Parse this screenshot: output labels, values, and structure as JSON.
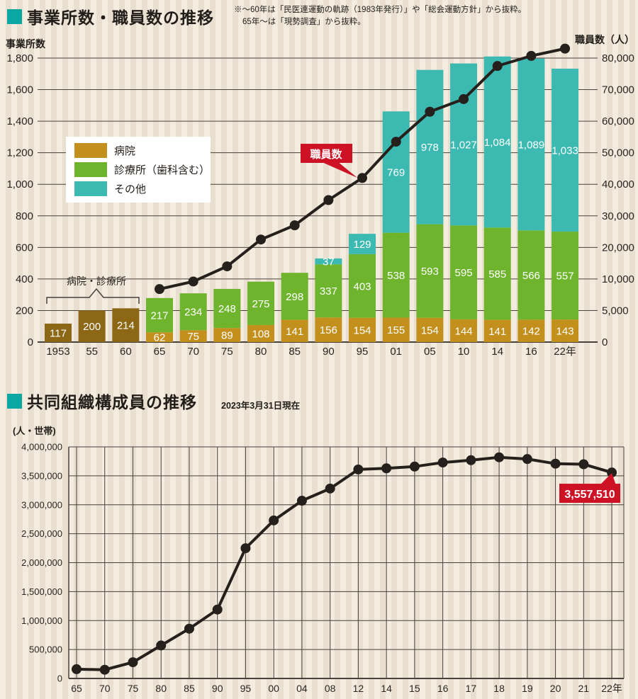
{
  "colors": {
    "square": "#0ba7a3",
    "hospital": "#c3901d",
    "clinic": "#6eb52d",
    "other": "#3cbab2",
    "combined": "#8c6716",
    "line": "#26201c",
    "red": "#cd1226",
    "grid": "#47413c",
    "text": "#2a2521",
    "white": "#ffffff"
  },
  "header1": {
    "title": "事業所数・職員数の推移",
    "note1": "※～60年は「民医連運動の軌跡（1983年発行）」や「総会運動方針」から抜粋。",
    "note2": "65年～は「現勢調査」から抜粋。"
  },
  "header2": {
    "title": "共同組織構成員の推移",
    "subtitle": "2023年3月31日現在"
  },
  "chart_data": [
    {
      "type": "bar+line",
      "title": "事業所数・職員数の推移",
      "categories": [
        "1953",
        "55",
        "60",
        "65",
        "70",
        "75",
        "80",
        "85",
        "90",
        "95",
        "01",
        "05",
        "10",
        "14",
        "16",
        "22年"
      ],
      "left_axis": {
        "label": "事業所数",
        "max": 1800,
        "ticks": [
          "0",
          "200",
          "400",
          "600",
          "800",
          "1,000",
          "1,200",
          "1,400",
          "1,600",
          "1,800"
        ]
      },
      "right_axis": {
        "label": "職員数（人）",
        "tick_values": [
          0,
          5000,
          10000,
          20000,
          30000,
          40000,
          50000,
          60000,
          70000,
          80000
        ],
        "ticks": [
          "0",
          "5,000",
          "10,000",
          "20,000",
          "30,000",
          "40,000",
          "50,000",
          "60,000",
          "70,000",
          "80,000"
        ]
      },
      "bar_series": [
        {
          "name": "病院・診療所",
          "color": "combined",
          "values": [
            117,
            200,
            214,
            0,
            0,
            0,
            0,
            0,
            0,
            0,
            0,
            0,
            0,
            0,
            0,
            0
          ]
        },
        {
          "name": "病院",
          "color": "hospital",
          "values": [
            0,
            0,
            0,
            62,
            75,
            89,
            108,
            141,
            156,
            154,
            155,
            154,
            144,
            141,
            142,
            143
          ]
        },
        {
          "name": "診療所（歯科含む）",
          "color": "clinic",
          "values": [
            0,
            0,
            0,
            217,
            234,
            248,
            275,
            298,
            337,
            403,
            538,
            593,
            595,
            585,
            566,
            557
          ]
        },
        {
          "name": "その他",
          "color": "other",
          "values": [
            0,
            0,
            0,
            0,
            0,
            0,
            0,
            0,
            37,
            129,
            769,
            978,
            1027,
            1084,
            1089,
            1033
          ]
        }
      ],
      "line_series": {
        "name": "職員数",
        "start_index": 3,
        "values": [
          8400,
          9600,
          14000,
          22500,
          27000,
          35000,
          42000,
          53500,
          63000,
          67000,
          77500,
          80700,
          83000
        ],
        "note": "values estimated from plot position"
      },
      "legend": [
        {
          "label": "病院",
          "color": "hospital"
        },
        {
          "label": "診療所（歯科含む）",
          "color": "clinic"
        },
        {
          "label": "その他",
          "color": "other"
        }
      ],
      "annotations": {
        "bracket_label": "病院・診療所",
        "line_callout": "職員数"
      },
      "legend_position": "upper-left",
      "grid": true
    },
    {
      "type": "line",
      "title": "共同組織構成員の推移",
      "subtitle": "2023年3月31日現在",
      "ylabel": "(人・世帯)",
      "ymax": 4000000,
      "yticks": [
        "0",
        "500,000",
        "1,000,000",
        "1,500,000",
        "2,000,000",
        "2,500,000",
        "3,000,000",
        "3,500,000",
        "4,000,000"
      ],
      "categories": [
        "65",
        "70",
        "75",
        "80",
        "85",
        "90",
        "95",
        "00",
        "04",
        "08",
        "12",
        "14",
        "15",
        "16",
        "17",
        "18",
        "19",
        "20",
        "21",
        "22年"
      ],
      "values": [
        160000,
        150000,
        280000,
        570000,
        860000,
        1190000,
        2250000,
        2730000,
        3070000,
        3280000,
        3610000,
        3630000,
        3660000,
        3730000,
        3770000,
        3820000,
        3790000,
        3710000,
        3700000,
        3557510
      ],
      "annotation": {
        "label": "3,557,510",
        "category": "22年",
        "value": 3557510
      },
      "grid": true
    }
  ]
}
